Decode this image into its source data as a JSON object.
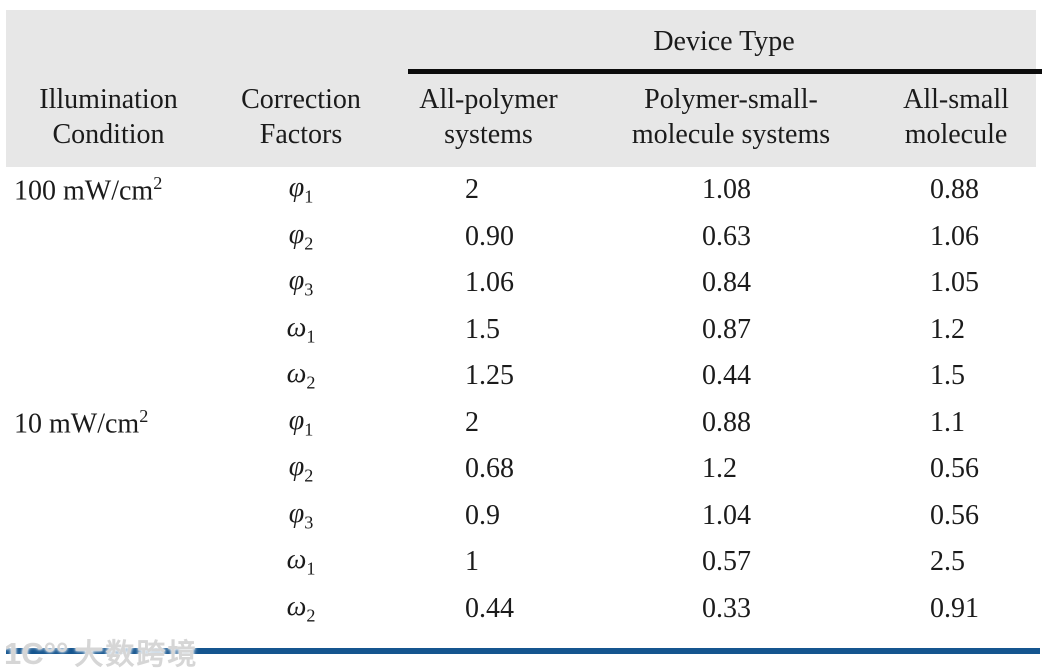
{
  "table": {
    "spanner_label": "Device Type",
    "col_headers": [
      {
        "line1": "Illumination",
        "line2": "Condition"
      },
      {
        "line1": "Correction",
        "line2": "Factors"
      },
      {
        "line1": "All-polymer",
        "line2": "systems"
      },
      {
        "line1": "Polymer-small-",
        "line2": "molecule systems"
      },
      {
        "line1": "All-small",
        "line2": "molecule"
      }
    ],
    "rows": [
      {
        "condition": "100 mW/cm",
        "condition_sup": "2",
        "symbol": "φ",
        "sub": "1",
        "v1": "2",
        "v2": "1.08",
        "v3": "0.88"
      },
      {
        "condition": "",
        "condition_sup": "",
        "symbol": "φ",
        "sub": "2",
        "v1": "0.90",
        "v2": "0.63",
        "v3": "1.06"
      },
      {
        "condition": "",
        "condition_sup": "",
        "symbol": "φ",
        "sub": "3",
        "v1": "1.06",
        "v2": "0.84",
        "v3": "1.05"
      },
      {
        "condition": "",
        "condition_sup": "",
        "symbol": "ω",
        "sub": "1",
        "v1": "1.5",
        "v2": "0.87",
        "v3": "1.2"
      },
      {
        "condition": "",
        "condition_sup": "",
        "symbol": "ω",
        "sub": "2",
        "v1": "1.25",
        "v2": "0.44",
        "v3": "1.5"
      },
      {
        "condition": "10 mW/cm",
        "condition_sup": "2",
        "symbol": "φ",
        "sub": "1",
        "v1": "2",
        "v2": "0.88",
        "v3": "1.1"
      },
      {
        "condition": "",
        "condition_sup": "",
        "symbol": "φ",
        "sub": "2",
        "v1": "0.68",
        "v2": "1.2",
        "v3": "0.56"
      },
      {
        "condition": "",
        "condition_sup": "",
        "symbol": "φ",
        "sub": "3",
        "v1": "0.9",
        "v2": "1.04",
        "v3": "0.56"
      },
      {
        "condition": "",
        "condition_sup": "",
        "symbol": "ω",
        "sub": "1",
        "v1": "1",
        "v2": "0.57",
        "v3": "2.5"
      },
      {
        "condition": "",
        "condition_sup": "",
        "symbol": "ω",
        "sub": "2",
        "v1": "0.44",
        "v2": "0.33",
        "v3": "0.91"
      }
    ]
  },
  "watermark": {
    "logo": "1C°°",
    "text": "大数跨境"
  },
  "colors": {
    "header_background": "#e7e7e7",
    "spanner_rule": "#0c0c0c",
    "bottom_rule_blue": "#15558f",
    "text": "#1b1b1b",
    "watermark_gray": "#d6d6d6"
  }
}
